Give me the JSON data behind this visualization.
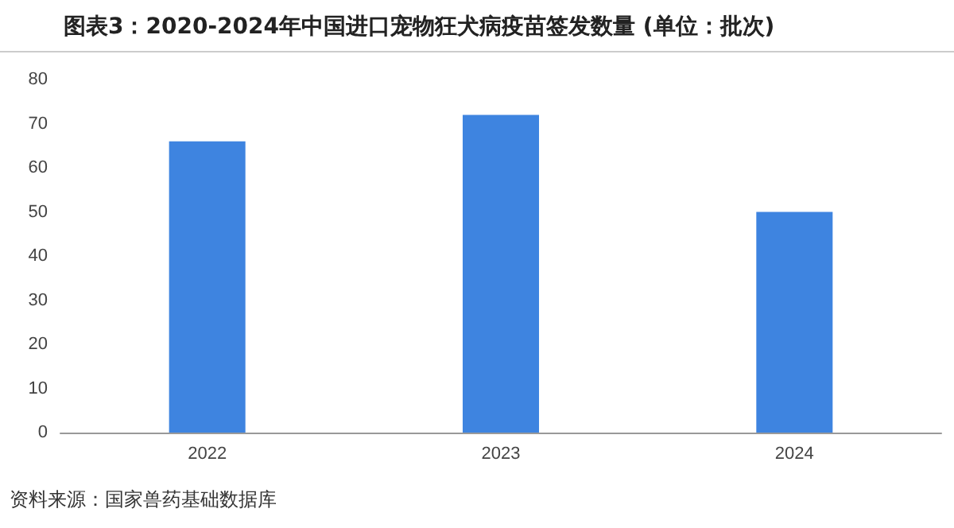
{
  "chart_data": {
    "type": "bar",
    "title": "图表3：2020-2024年中国进口宠物狂犬病疫苗签发数量 (单位：批次)",
    "categories": [
      "2022",
      "2023",
      "2024"
    ],
    "values": [
      66,
      72,
      50
    ],
    "color": "#3e84e0",
    "ylim": [
      0,
      80
    ],
    "yticks": [
      0,
      10,
      20,
      30,
      40,
      50,
      60,
      70,
      80
    ],
    "grid": false,
    "annotations": [
      "资料来源：国家兽药基础数据库"
    ]
  }
}
